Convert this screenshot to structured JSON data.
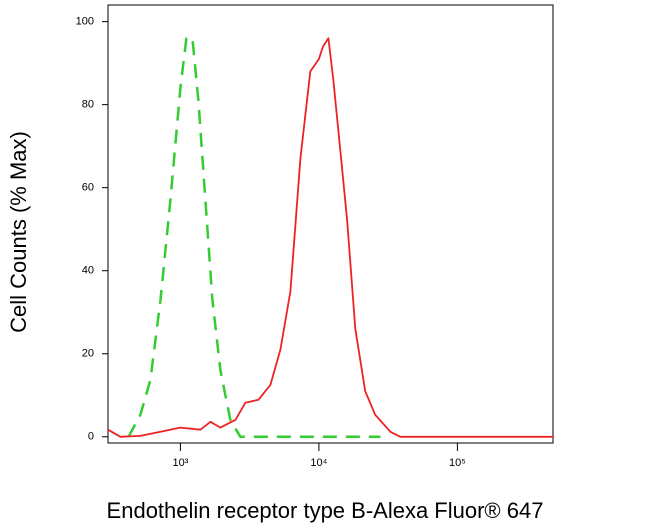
{
  "chart_data": {
    "type": "line",
    "xlabel": "Endothelin receptor type B-Alexa Fluor® 647",
    "ylabel": "Cell Counts (% Max)",
    "xscale": "log",
    "xlim": [
      300,
      490000
    ],
    "ylim": [
      -1.5,
      104
    ],
    "xticks": [
      {
        "value": 1000,
        "label": "10³"
      },
      {
        "value": 10000,
        "label": "10⁴"
      },
      {
        "value": 100000,
        "label": "10⁵"
      }
    ],
    "yticks": [
      0,
      20,
      40,
      60,
      80,
      100
    ],
    "series": [
      {
        "color": "#33cc33",
        "dash": true,
        "x": [
          422,
          514,
          607,
          718,
          847,
          1000,
          1105,
          1221,
          1349,
          1515,
          1702,
          1945,
          2297,
          2712,
          3785,
          7347,
          27800
        ],
        "values": [
          0,
          5.3,
          13.7,
          33,
          57,
          84,
          96,
          96,
          81,
          57,
          33,
          16,
          4,
          0,
          0,
          0,
          0
        ]
      },
      {
        "color": "#ee2222",
        "dash": false,
        "x": [
          300,
          369,
          514,
          718,
          1000,
          1394,
          1647,
          1945,
          2497,
          2948,
          3656,
          4465,
          5272,
          6225,
          7347,
          8670,
          10000,
          10700,
          11700,
          12700,
          14270,
          16000,
          18300,
          21600,
          25500,
          32800,
          38700,
          490000
        ],
        "values": [
          1.7,
          0,
          0.2,
          1.2,
          2.2,
          1.7,
          3.6,
          2.2,
          4.1,
          8.2,
          8.9,
          12.5,
          21,
          35,
          67,
          88,
          91,
          94,
          96,
          86,
          69,
          52,
          26,
          11,
          5.3,
          1.2,
          0,
          0
        ]
      }
    ]
  }
}
